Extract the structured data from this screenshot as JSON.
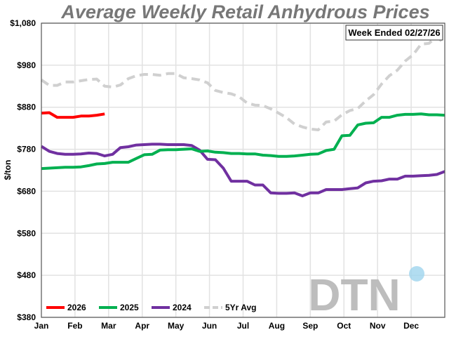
{
  "chart_data": {
    "type": "line",
    "title": "Average Weekly Retail Anhydrous Prices",
    "ylabel": "$/ton",
    "xlabel": "",
    "annotation": "Week Ended 02/27/26",
    "ylim": [
      380,
      1080
    ],
    "yticks": [
      "$380",
      "$480",
      "$580",
      "$680",
      "$780",
      "$880",
      "$980",
      "$1,080"
    ],
    "ytick_values": [
      380,
      480,
      580,
      680,
      780,
      880,
      980,
      1080
    ],
    "xticks": [
      "Jan",
      "Feb",
      "Mar",
      "Apr",
      "May",
      "Jun",
      "Jul",
      "Aug",
      "Sep",
      "Oct",
      "Nov",
      "Dec"
    ],
    "x_unit": "week of year (1-52)",
    "grid": true,
    "legend_placement": "bottom-left",
    "logo": "DTN",
    "series": [
      {
        "name": "2026",
        "color": "#ff0000",
        "dashed": false,
        "values": [
          866,
          867,
          856,
          856,
          856,
          859,
          859,
          861,
          864
        ]
      },
      {
        "name": "2025",
        "color": "#00b050",
        "dashed": false,
        "values": [
          734,
          735,
          736,
          737,
          737,
          738,
          741,
          745,
          746,
          749,
          749,
          749,
          758,
          767,
          768,
          778,
          779,
          779,
          780,
          781,
          775,
          776,
          773,
          772,
          770,
          770,
          769,
          769,
          766,
          765,
          763,
          763,
          764,
          766,
          768,
          769,
          777,
          780,
          812,
          813,
          838,
          842,
          843,
          856,
          856,
          861,
          863,
          863,
          864,
          862,
          862,
          861
        ]
      },
      {
        "name": "2024",
        "color": "#7030a0",
        "dashed": false,
        "values": [
          787,
          775,
          770,
          768,
          768,
          769,
          771,
          770,
          764,
          768,
          784,
          786,
          790,
          791,
          792,
          792,
          791,
          791,
          791,
          789,
          778,
          756,
          755,
          735,
          704,
          704,
          704,
          695,
          695,
          676,
          675,
          675,
          676,
          669,
          676,
          676,
          684,
          684,
          684,
          686,
          688,
          700,
          704,
          705,
          709,
          709,
          716,
          716,
          717,
          718,
          720,
          727
        ]
      },
      {
        "name": "5Yr Avg",
        "color": "#d0d0d0",
        "dashed": true,
        "values": [
          945,
          932,
          932,
          940,
          940,
          943,
          946,
          947,
          930,
          928,
          933,
          948,
          955,
          958,
          958,
          956,
          960,
          960,
          950,
          948,
          945,
          938,
          920,
          915,
          912,
          905,
          890,
          885,
          884,
          876,
          866,
          855,
          840,
          833,
          828,
          826,
          845,
          847,
          862,
          872,
          877,
          895,
          910,
          935,
          955,
          968,
          990,
          1005,
          1030,
          1032,
          1048,
          1030
        ]
      }
    ]
  }
}
